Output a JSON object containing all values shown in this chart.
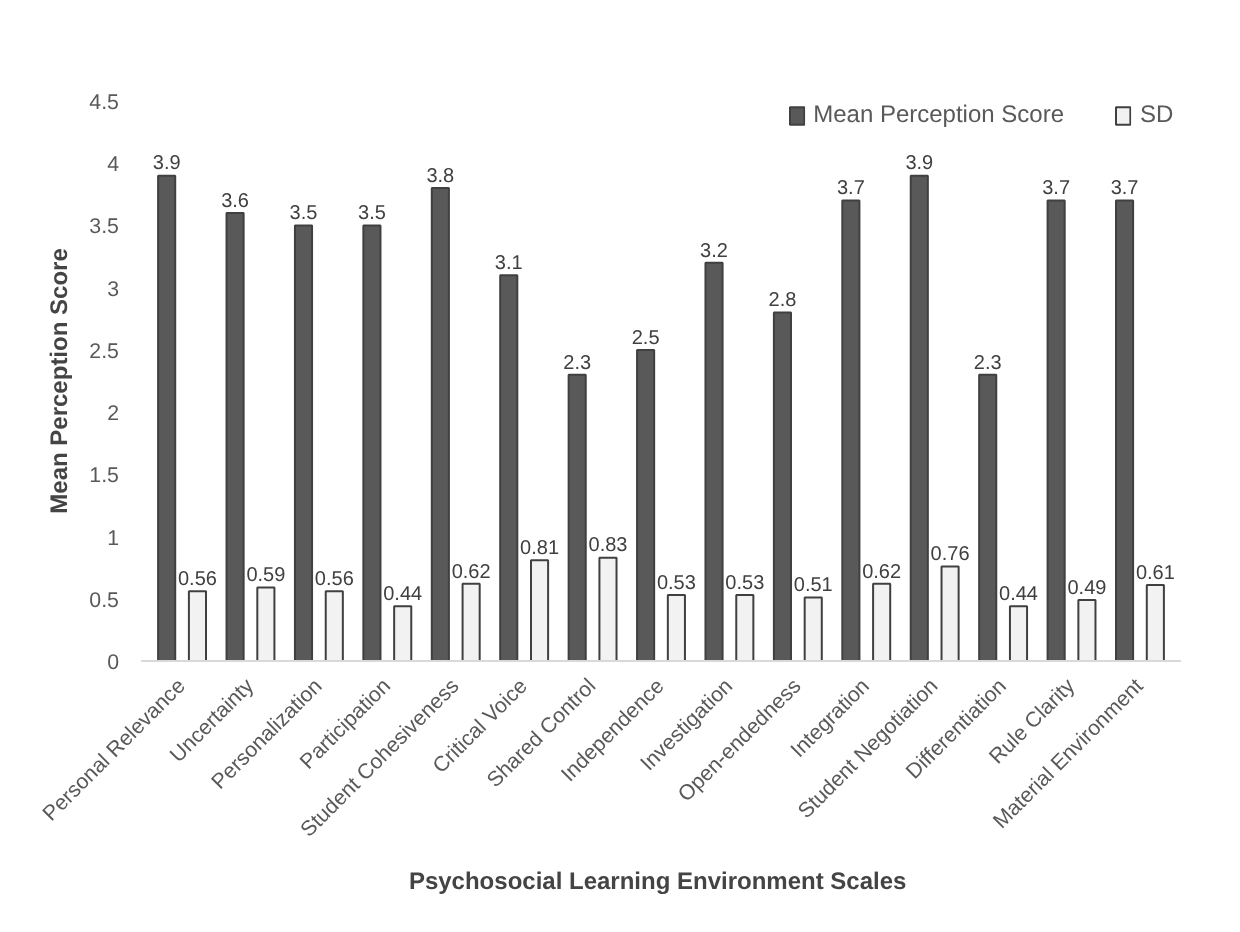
{
  "chart_data": {
    "type": "bar",
    "xlabel": "Psychosocial  Learning Environment Scales",
    "ylabel": "Mean Perception Score",
    "categories": [
      "Personal Relevance",
      "Uncertainty",
      "Personalization",
      "Participation",
      "Student Cohesiveness",
      "Critical Voice",
      "Shared Control",
      "Independence",
      "Investigation",
      "Open-endedness",
      "Integration",
      "Student Negotiation",
      "Differentiation",
      "Rule Clarity",
      "Material Environment"
    ],
    "series": [
      {
        "name": "Mean Perception Score",
        "color": "#595959",
        "values": [
          3.9,
          3.6,
          3.5,
          3.5,
          3.8,
          3.1,
          2.3,
          2.5,
          3.2,
          2.8,
          3.7,
          3.9,
          2.3,
          3.7,
          3.7
        ]
      },
      {
        "name": "SD",
        "color": "#f2f2f2",
        "values": [
          0.56,
          0.59,
          0.56,
          0.44,
          0.62,
          0.81,
          0.83,
          0.53,
          0.53,
          0.51,
          0.62,
          0.76,
          0.44,
          0.49,
          0.61
        ]
      }
    ],
    "ylim": [
      0,
      4.5
    ],
    "yticks": [
      0,
      0.5,
      1,
      1.5,
      2,
      2.5,
      3,
      3.5,
      4,
      4.5
    ],
    "data_labels": true,
    "legend": "top right",
    "grid": false
  }
}
